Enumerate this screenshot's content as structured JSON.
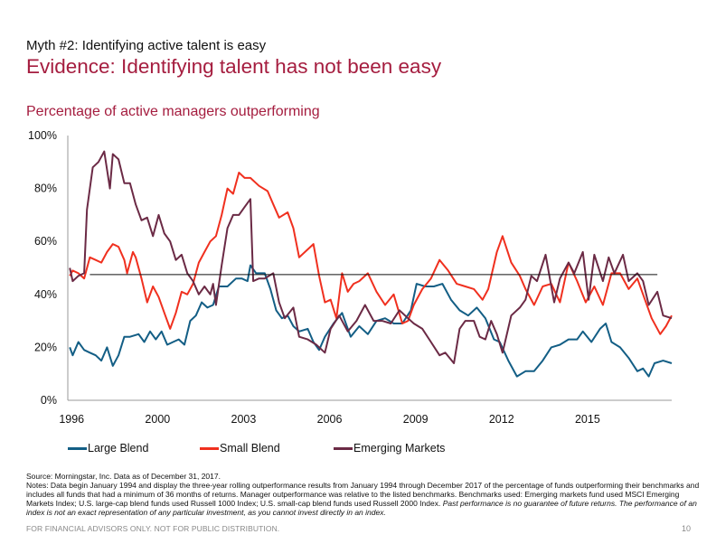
{
  "header": {
    "eyebrow": "Myth #2: Identifying active talent is easy",
    "title": "Evidence: Identifying talent has not been easy",
    "subtitle": "Percentage of active managers outperforming"
  },
  "colors": {
    "brand": "#a51d3f",
    "large_blend": "#135e85",
    "small_blend": "#f0301f",
    "emerging_markets": "#6b2a45",
    "reference_line": "#111111",
    "axis": "#999999"
  },
  "chart_data": {
    "type": "line",
    "title": "Percentage of active managers outperforming",
    "xlabel": "",
    "ylabel": "",
    "x_range": [
      1996.93,
      2018.0
    ],
    "ylim": [
      0,
      100
    ],
    "y_ticks": [
      0,
      20,
      40,
      60,
      80,
      100
    ],
    "y_tick_labels": [
      "0%",
      "20%",
      "40%",
      "60%",
      "80%",
      "100%"
    ],
    "x_tick_labels": [
      {
        "label": "1996",
        "x": 1997.0
      },
      {
        "label": "2000",
        "x": 2000.0
      },
      {
        "label": "2003",
        "x": 2003.0
      },
      {
        "label": "2006",
        "x": 2006.0
      },
      {
        "label": "2009",
        "x": 2009.0
      },
      {
        "label": "2012",
        "x": 2012.0
      },
      {
        "label": "2015",
        "x": 2015.0
      }
    ],
    "grid": false,
    "legend_position": "bottom",
    "reference_line": {
      "value": 47.5,
      "x_start": 1997.7,
      "x_end": 2017.5
    },
    "series": [
      {
        "name": "Large Blend",
        "color": "#135e85",
        "points": [
          [
            1997.0,
            20
          ],
          [
            1997.1,
            17
          ],
          [
            1997.3,
            22
          ],
          [
            1997.5,
            19
          ],
          [
            1997.7,
            18
          ],
          [
            1997.9,
            17
          ],
          [
            1998.1,
            15
          ],
          [
            1998.3,
            20
          ],
          [
            1998.5,
            13
          ],
          [
            1998.7,
            17
          ],
          [
            1998.9,
            24
          ],
          [
            1999.1,
            24
          ],
          [
            1999.4,
            25
          ],
          [
            1999.6,
            22
          ],
          [
            1999.8,
            26
          ],
          [
            2000.0,
            23
          ],
          [
            2000.2,
            26
          ],
          [
            2000.4,
            21
          ],
          [
            2000.6,
            22
          ],
          [
            2000.8,
            23
          ],
          [
            2001.0,
            21
          ],
          [
            2001.2,
            30
          ],
          [
            2001.4,
            32
          ],
          [
            2001.6,
            37
          ],
          [
            2001.8,
            35
          ],
          [
            2002.0,
            36
          ],
          [
            2002.2,
            43
          ],
          [
            2002.5,
            43
          ],
          [
            2002.8,
            46
          ],
          [
            2003.0,
            46
          ],
          [
            2003.2,
            45
          ],
          [
            2003.3,
            51
          ],
          [
            2003.5,
            48
          ],
          [
            2003.8,
            48
          ],
          [
            2004.0,
            42
          ],
          [
            2004.2,
            34
          ],
          [
            2004.4,
            31
          ],
          [
            2004.6,
            32
          ],
          [
            2004.8,
            28
          ],
          [
            2005.0,
            26
          ],
          [
            2005.3,
            27
          ],
          [
            2005.5,
            22
          ],
          [
            2005.7,
            19
          ],
          [
            2005.9,
            24
          ],
          [
            2006.2,
            29
          ],
          [
            2006.5,
            33
          ],
          [
            2006.8,
            24
          ],
          [
            2007.1,
            28
          ],
          [
            2007.4,
            25
          ],
          [
            2007.7,
            30
          ],
          [
            2008.0,
            31
          ],
          [
            2008.3,
            29
          ],
          [
            2008.6,
            29
          ],
          [
            2008.9,
            34
          ],
          [
            2009.1,
            44
          ],
          [
            2009.4,
            43
          ],
          [
            2009.7,
            43
          ],
          [
            2010.0,
            44
          ],
          [
            2010.3,
            38
          ],
          [
            2010.6,
            34
          ],
          [
            2010.9,
            32
          ],
          [
            2011.2,
            35
          ],
          [
            2011.5,
            31
          ],
          [
            2011.8,
            23
          ],
          [
            2012.0,
            22
          ],
          [
            2012.3,
            15
          ],
          [
            2012.6,
            9
          ],
          [
            2012.9,
            11
          ],
          [
            2013.2,
            11
          ],
          [
            2013.5,
            15
          ],
          [
            2013.8,
            20
          ],
          [
            2014.1,
            21
          ],
          [
            2014.4,
            23
          ],
          [
            2014.7,
            23
          ],
          [
            2014.9,
            26
          ],
          [
            2015.2,
            22
          ],
          [
            2015.5,
            27
          ],
          [
            2015.7,
            29
          ],
          [
            2015.9,
            22
          ],
          [
            2016.2,
            20
          ],
          [
            2016.5,
            16
          ],
          [
            2016.8,
            11
          ],
          [
            2017.0,
            12
          ],
          [
            2017.2,
            9
          ],
          [
            2017.4,
            14
          ],
          [
            2017.7,
            15
          ],
          [
            2018.0,
            14
          ]
        ]
      },
      {
        "name": "Small Blend",
        "color": "#f0301f",
        "points": [
          [
            1997.0,
            47
          ],
          [
            1997.1,
            49
          ],
          [
            1997.3,
            48
          ],
          [
            1997.5,
            46
          ],
          [
            1997.7,
            54
          ],
          [
            1997.9,
            53
          ],
          [
            1998.1,
            52
          ],
          [
            1998.3,
            56
          ],
          [
            1998.5,
            59
          ],
          [
            1998.7,
            58
          ],
          [
            1998.9,
            53
          ],
          [
            1999.0,
            48
          ],
          [
            1999.2,
            56
          ],
          [
            1999.3,
            54
          ],
          [
            1999.5,
            46
          ],
          [
            1999.7,
            37
          ],
          [
            1999.9,
            43
          ],
          [
            2000.1,
            39
          ],
          [
            2000.3,
            33
          ],
          [
            2000.5,
            27
          ],
          [
            2000.7,
            33
          ],
          [
            2000.9,
            41
          ],
          [
            2001.1,
            40
          ],
          [
            2001.3,
            44
          ],
          [
            2001.5,
            52
          ],
          [
            2001.7,
            56
          ],
          [
            2001.9,
            60
          ],
          [
            2002.1,
            62
          ],
          [
            2002.3,
            70
          ],
          [
            2002.5,
            80
          ],
          [
            2002.7,
            78
          ],
          [
            2002.9,
            86
          ],
          [
            2003.1,
            84
          ],
          [
            2003.3,
            84
          ],
          [
            2003.6,
            81
          ],
          [
            2003.9,
            79
          ],
          [
            2004.1,
            74
          ],
          [
            2004.3,
            69
          ],
          [
            2004.6,
            71
          ],
          [
            2004.8,
            65
          ],
          [
            2005.0,
            54
          ],
          [
            2005.3,
            57
          ],
          [
            2005.5,
            59
          ],
          [
            2005.7,
            47
          ],
          [
            2005.9,
            37
          ],
          [
            2006.1,
            38
          ],
          [
            2006.3,
            31
          ],
          [
            2006.5,
            48
          ],
          [
            2006.7,
            41
          ],
          [
            2006.9,
            44
          ],
          [
            2007.1,
            45
          ],
          [
            2007.4,
            48
          ],
          [
            2007.7,
            41
          ],
          [
            2008.0,
            36
          ],
          [
            2008.3,
            40
          ],
          [
            2008.6,
            29
          ],
          [
            2008.8,
            30
          ],
          [
            2009.0,
            36
          ],
          [
            2009.3,
            42
          ],
          [
            2009.6,
            46
          ],
          [
            2009.9,
            53
          ],
          [
            2010.2,
            49
          ],
          [
            2010.5,
            44
          ],
          [
            2010.8,
            43
          ],
          [
            2011.1,
            42
          ],
          [
            2011.4,
            38
          ],
          [
            2011.6,
            42
          ],
          [
            2011.9,
            56
          ],
          [
            2012.1,
            62
          ],
          [
            2012.4,
            52
          ],
          [
            2012.7,
            47
          ],
          [
            2012.9,
            42
          ],
          [
            2013.2,
            36
          ],
          [
            2013.5,
            43
          ],
          [
            2013.8,
            44
          ],
          [
            2014.1,
            37
          ],
          [
            2014.4,
            52
          ],
          [
            2014.7,
            45
          ],
          [
            2015.0,
            37
          ],
          [
            2015.3,
            43
          ],
          [
            2015.6,
            36
          ],
          [
            2015.9,
            48
          ],
          [
            2016.2,
            48
          ],
          [
            2016.5,
            42
          ],
          [
            2016.8,
            46
          ],
          [
            2017.0,
            40
          ],
          [
            2017.3,
            31
          ],
          [
            2017.6,
            25
          ],
          [
            2017.8,
            28
          ],
          [
            2018.0,
            32
          ]
        ]
      },
      {
        "name": "Emerging Markets",
        "color": "#6b2a45",
        "points": [
          [
            1997.0,
            50
          ],
          [
            1997.1,
            45
          ],
          [
            1997.3,
            47
          ],
          [
            1997.5,
            48
          ],
          [
            1997.6,
            72
          ],
          [
            1997.8,
            88
          ],
          [
            1998.0,
            90
          ],
          [
            1998.2,
            94
          ],
          [
            1998.4,
            80
          ],
          [
            1998.5,
            93
          ],
          [
            1998.7,
            91
          ],
          [
            1998.9,
            82
          ],
          [
            1999.1,
            82
          ],
          [
            1999.3,
            74
          ],
          [
            1999.5,
            68
          ],
          [
            1999.7,
            69
          ],
          [
            1999.9,
            62
          ],
          [
            2000.1,
            70
          ],
          [
            2000.3,
            63
          ],
          [
            2000.5,
            60
          ],
          [
            2000.7,
            53
          ],
          [
            2000.9,
            55
          ],
          [
            2001.1,
            48
          ],
          [
            2001.3,
            45
          ],
          [
            2001.5,
            40
          ],
          [
            2001.7,
            43
          ],
          [
            2001.9,
            40
          ],
          [
            2002.0,
            44
          ],
          [
            2002.1,
            36
          ],
          [
            2002.3,
            51
          ],
          [
            2002.5,
            65
          ],
          [
            2002.7,
            70
          ],
          [
            2002.9,
            70
          ],
          [
            2003.1,
            73
          ],
          [
            2003.3,
            76
          ],
          [
            2003.4,
            45
          ],
          [
            2003.6,
            46
          ],
          [
            2003.8,
            46
          ],
          [
            2004.1,
            48
          ],
          [
            2004.3,
            37
          ],
          [
            2004.5,
            31
          ],
          [
            2004.8,
            35
          ],
          [
            2005.0,
            24
          ],
          [
            2005.3,
            23
          ],
          [
            2005.6,
            21
          ],
          [
            2005.9,
            18
          ],
          [
            2006.1,
            27
          ],
          [
            2006.4,
            32
          ],
          [
            2006.7,
            26
          ],
          [
            2007.0,
            30
          ],
          [
            2007.3,
            36
          ],
          [
            2007.6,
            30
          ],
          [
            2007.9,
            30
          ],
          [
            2008.2,
            29
          ],
          [
            2008.5,
            34
          ],
          [
            2008.8,
            31
          ],
          [
            2009.0,
            29
          ],
          [
            2009.3,
            27
          ],
          [
            2009.6,
            22
          ],
          [
            2009.9,
            17
          ],
          [
            2010.1,
            18
          ],
          [
            2010.4,
            14
          ],
          [
            2010.6,
            27
          ],
          [
            2010.8,
            30
          ],
          [
            2011.1,
            30
          ],
          [
            2011.3,
            24
          ],
          [
            2011.5,
            23
          ],
          [
            2011.7,
            30
          ],
          [
            2011.9,
            25
          ],
          [
            2012.1,
            18
          ],
          [
            2012.4,
            32
          ],
          [
            2012.7,
            35
          ],
          [
            2012.9,
            38
          ],
          [
            2013.1,
            47
          ],
          [
            2013.3,
            45
          ],
          [
            2013.6,
            55
          ],
          [
            2013.9,
            37
          ],
          [
            2014.1,
            46
          ],
          [
            2014.4,
            52
          ],
          [
            2014.6,
            48
          ],
          [
            2014.9,
            56
          ],
          [
            2015.1,
            38
          ],
          [
            2015.3,
            55
          ],
          [
            2015.6,
            45
          ],
          [
            2015.8,
            54
          ],
          [
            2016.0,
            48
          ],
          [
            2016.3,
            55
          ],
          [
            2016.5,
            45
          ],
          [
            2016.8,
            48
          ],
          [
            2017.0,
            45
          ],
          [
            2017.2,
            36
          ],
          [
            2017.5,
            41
          ],
          [
            2017.7,
            32
          ],
          [
            2018.0,
            31
          ]
        ]
      }
    ]
  },
  "legend": [
    {
      "label": "Large Blend",
      "color": "#135e85"
    },
    {
      "label": "Small Blend",
      "color": "#f0301f"
    },
    {
      "label": "Emerging Markets",
      "color": "#6b2a45"
    }
  ],
  "source": {
    "line1": "Source: Morningstar, Inc. Data as of December 31, 2017.",
    "notes": "Notes: Data begin January 1994 and display the three-year rolling outperformance results from January 1994 through December 2017 of the percentage of funds outperforming their benchmarks and includes all funds that had a minimum of 36 months of returns. Manager outperformance was relative to the listed benchmarks. Benchmarks used: Emerging markets fund used MSCI Emerging Markets Index; U.S. large-cap blend funds used Russell 1000 Index; U.S. small-cap blend funds used Russell 2000 Index. ",
    "notes_italic": "Past performance is no guarantee of future returns. The performance of an index is not an exact representation of any particular investment, as you cannot invest directly in an index."
  },
  "footer": {
    "disclaimer": "FOR FINANCIAL ADVISORS ONLY. NOT FOR PUBLIC DISTRIBUTION.",
    "page_number": "10"
  }
}
